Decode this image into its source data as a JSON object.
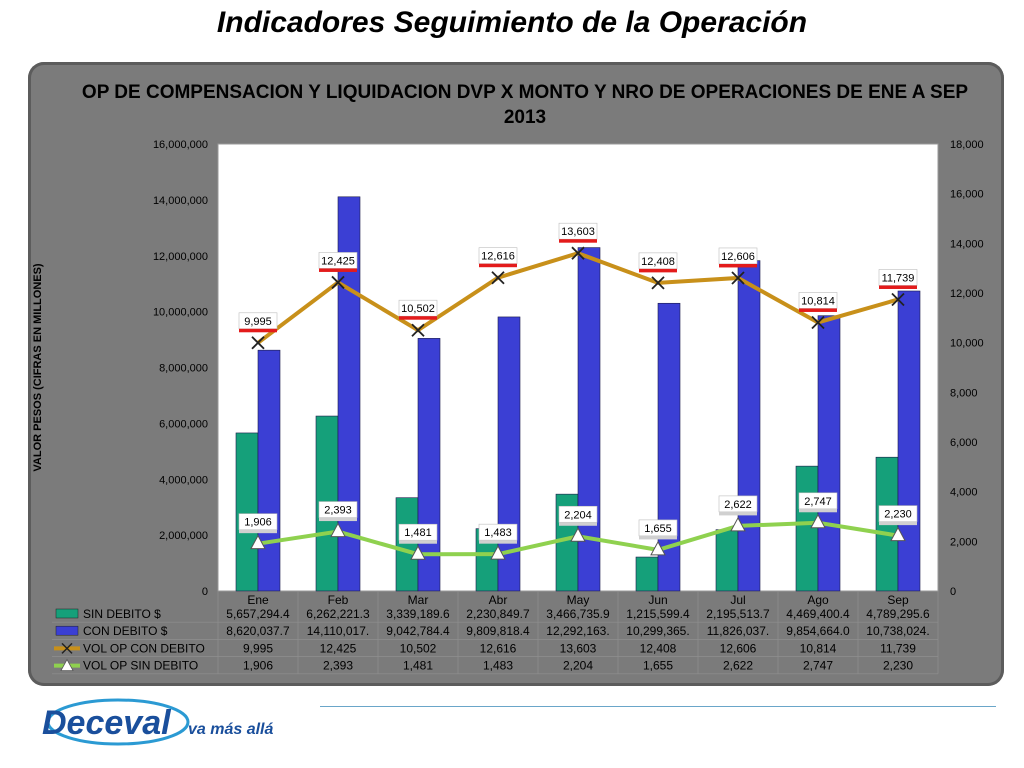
{
  "page": {
    "title": "Indicadores Seguimiento de la Operación"
  },
  "chart_data": {
    "type": "bar",
    "title": "OP DE COMPENSACION Y LIQUIDACION DVP X MONTO Y NRO  DE OPERACIONES DE ENE A SEP 2013",
    "ylabel": "VALOR PESOS (CIFRAS  EN  MILLONES)",
    "ylim": [
      0,
      16000000
    ],
    "y2lim": [
      0,
      18000
    ],
    "yticks": [
      "0",
      "2,000,000",
      "4,000,000",
      "6,000,000",
      "8,000,000",
      "10,000,000",
      "12,000,000",
      "14,000,000",
      "16,000,000"
    ],
    "y2ticks": [
      "0",
      "2,000",
      "4,000",
      "6,000",
      "8,000",
      "10,000",
      "12,000",
      "14,000",
      "16,000",
      "18,000"
    ],
    "grid": false,
    "legend": "data-table-bottom",
    "categories": [
      "Ene",
      "Feb",
      "Mar",
      "Abr",
      "May",
      "Jun",
      "Jul",
      "Ago",
      "Sep"
    ],
    "series": [
      {
        "name": "SIN DEBITO $",
        "type": "bar",
        "axis": "left",
        "color": "#15a07a",
        "values": [
          5657294.4,
          6262221.3,
          3339189.6,
          2230849.7,
          3466735.9,
          1215599.4,
          2195513.7,
          4469400.4,
          4789295.6
        ],
        "labels": [
          "5,657,294.4",
          "6,262,221.3",
          "3,339,189.6",
          "2,230,849.7",
          "3,466,735.9",
          "1,215,599.4",
          "2,195,513.7",
          "4,469,400.4",
          "4,789,295.6"
        ]
      },
      {
        "name": "CON DEBITO $",
        "type": "bar",
        "axis": "left",
        "color": "#3b3fd4",
        "values": [
          8620037.7,
          14110017,
          9042784.4,
          9809818.4,
          12292163,
          10299365,
          11826037,
          9854664.0,
          10738024
        ],
        "labels": [
          "8,620,037.7",
          "14,110,017.",
          "9,042,784.4",
          "9,809,818.4",
          "12,292,163.",
          "10,299,365.",
          "11,826,037.",
          "9,854,664.0",
          "10,738,024."
        ]
      },
      {
        "name": "VOL OP CON DEBITO",
        "type": "line",
        "axis": "right",
        "color": "#c8901a",
        "marker": "x",
        "values": [
          9995,
          12425,
          10502,
          12616,
          13603,
          12408,
          12606,
          10814,
          11739
        ],
        "labels": [
          "9,995",
          "12,425",
          "10,502",
          "12,616",
          "13,603",
          "12,408",
          "12,606",
          "10,814",
          "11,739"
        ]
      },
      {
        "name": "VOL OP SIN DEBITO",
        "type": "line",
        "axis": "right",
        "color": "#8fd14f",
        "marker": "triangle",
        "values": [
          1906,
          2393,
          1481,
          1483,
          2204,
          1655,
          2622,
          2747,
          2230
        ],
        "labels": [
          "1,906",
          "2,393",
          "1,481",
          "1,483",
          "2,204",
          "1,655",
          "2,622",
          "2,747",
          "2,230"
        ]
      }
    ]
  },
  "logo": {
    "name": "Deceval",
    "tagline": "va más allá"
  },
  "colors": {
    "panel": "#7b7b7b",
    "plot_bg": "#ffffff",
    "label_underline": "#e31b1b"
  }
}
